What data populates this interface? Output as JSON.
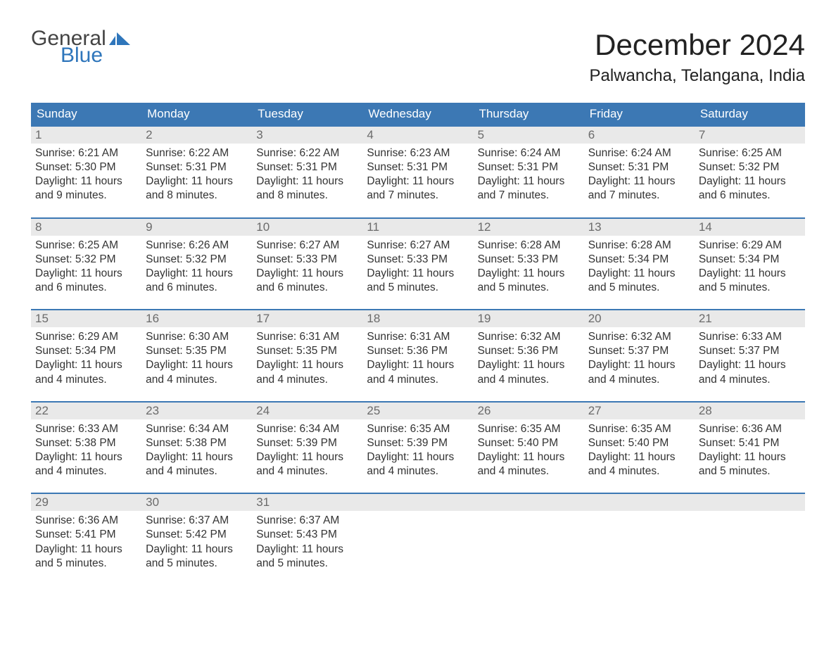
{
  "brand": {
    "line1": "General",
    "line2": "Blue",
    "general_color": "#444444",
    "blue_color": "#2f76bb",
    "icon_fill": "#2f76bb"
  },
  "title": "December 2024",
  "location": "Palwancha, Telangana, India",
  "header_bg": "#3c78b4",
  "header_fg": "#ffffff",
  "daynum_bg": "#e9e9e9",
  "daynum_fg": "#6b6b6b",
  "border_color": "#3c78b4",
  "weekdays": [
    "Sunday",
    "Monday",
    "Tuesday",
    "Wednesday",
    "Thursday",
    "Friday",
    "Saturday"
  ],
  "weeks": [
    [
      {
        "n": "1",
        "sr": "Sunrise: 6:21 AM",
        "ss": "Sunset: 5:30 PM",
        "d1": "Daylight: 11 hours",
        "d2": "and 9 minutes."
      },
      {
        "n": "2",
        "sr": "Sunrise: 6:22 AM",
        "ss": "Sunset: 5:31 PM",
        "d1": "Daylight: 11 hours",
        "d2": "and 8 minutes."
      },
      {
        "n": "3",
        "sr": "Sunrise: 6:22 AM",
        "ss": "Sunset: 5:31 PM",
        "d1": "Daylight: 11 hours",
        "d2": "and 8 minutes."
      },
      {
        "n": "4",
        "sr": "Sunrise: 6:23 AM",
        "ss": "Sunset: 5:31 PM",
        "d1": "Daylight: 11 hours",
        "d2": "and 7 minutes."
      },
      {
        "n": "5",
        "sr": "Sunrise: 6:24 AM",
        "ss": "Sunset: 5:31 PM",
        "d1": "Daylight: 11 hours",
        "d2": "and 7 minutes."
      },
      {
        "n": "6",
        "sr": "Sunrise: 6:24 AM",
        "ss": "Sunset: 5:31 PM",
        "d1": "Daylight: 11 hours",
        "d2": "and 7 minutes."
      },
      {
        "n": "7",
        "sr": "Sunrise: 6:25 AM",
        "ss": "Sunset: 5:32 PM",
        "d1": "Daylight: 11 hours",
        "d2": "and 6 minutes."
      }
    ],
    [
      {
        "n": "8",
        "sr": "Sunrise: 6:25 AM",
        "ss": "Sunset: 5:32 PM",
        "d1": "Daylight: 11 hours",
        "d2": "and 6 minutes."
      },
      {
        "n": "9",
        "sr": "Sunrise: 6:26 AM",
        "ss": "Sunset: 5:32 PM",
        "d1": "Daylight: 11 hours",
        "d2": "and 6 minutes."
      },
      {
        "n": "10",
        "sr": "Sunrise: 6:27 AM",
        "ss": "Sunset: 5:33 PM",
        "d1": "Daylight: 11 hours",
        "d2": "and 6 minutes."
      },
      {
        "n": "11",
        "sr": "Sunrise: 6:27 AM",
        "ss": "Sunset: 5:33 PM",
        "d1": "Daylight: 11 hours",
        "d2": "and 5 minutes."
      },
      {
        "n": "12",
        "sr": "Sunrise: 6:28 AM",
        "ss": "Sunset: 5:33 PM",
        "d1": "Daylight: 11 hours",
        "d2": "and 5 minutes."
      },
      {
        "n": "13",
        "sr": "Sunrise: 6:28 AM",
        "ss": "Sunset: 5:34 PM",
        "d1": "Daylight: 11 hours",
        "d2": "and 5 minutes."
      },
      {
        "n": "14",
        "sr": "Sunrise: 6:29 AM",
        "ss": "Sunset: 5:34 PM",
        "d1": "Daylight: 11 hours",
        "d2": "and 5 minutes."
      }
    ],
    [
      {
        "n": "15",
        "sr": "Sunrise: 6:29 AM",
        "ss": "Sunset: 5:34 PM",
        "d1": "Daylight: 11 hours",
        "d2": "and 4 minutes."
      },
      {
        "n": "16",
        "sr": "Sunrise: 6:30 AM",
        "ss": "Sunset: 5:35 PM",
        "d1": "Daylight: 11 hours",
        "d2": "and 4 minutes."
      },
      {
        "n": "17",
        "sr": "Sunrise: 6:31 AM",
        "ss": "Sunset: 5:35 PM",
        "d1": "Daylight: 11 hours",
        "d2": "and 4 minutes."
      },
      {
        "n": "18",
        "sr": "Sunrise: 6:31 AM",
        "ss": "Sunset: 5:36 PM",
        "d1": "Daylight: 11 hours",
        "d2": "and 4 minutes."
      },
      {
        "n": "19",
        "sr": "Sunrise: 6:32 AM",
        "ss": "Sunset: 5:36 PM",
        "d1": "Daylight: 11 hours",
        "d2": "and 4 minutes."
      },
      {
        "n": "20",
        "sr": "Sunrise: 6:32 AM",
        "ss": "Sunset: 5:37 PM",
        "d1": "Daylight: 11 hours",
        "d2": "and 4 minutes."
      },
      {
        "n": "21",
        "sr": "Sunrise: 6:33 AM",
        "ss": "Sunset: 5:37 PM",
        "d1": "Daylight: 11 hours",
        "d2": "and 4 minutes."
      }
    ],
    [
      {
        "n": "22",
        "sr": "Sunrise: 6:33 AM",
        "ss": "Sunset: 5:38 PM",
        "d1": "Daylight: 11 hours",
        "d2": "and 4 minutes."
      },
      {
        "n": "23",
        "sr": "Sunrise: 6:34 AM",
        "ss": "Sunset: 5:38 PM",
        "d1": "Daylight: 11 hours",
        "d2": "and 4 minutes."
      },
      {
        "n": "24",
        "sr": "Sunrise: 6:34 AM",
        "ss": "Sunset: 5:39 PM",
        "d1": "Daylight: 11 hours",
        "d2": "and 4 minutes."
      },
      {
        "n": "25",
        "sr": "Sunrise: 6:35 AM",
        "ss": "Sunset: 5:39 PM",
        "d1": "Daylight: 11 hours",
        "d2": "and 4 minutes."
      },
      {
        "n": "26",
        "sr": "Sunrise: 6:35 AM",
        "ss": "Sunset: 5:40 PM",
        "d1": "Daylight: 11 hours",
        "d2": "and 4 minutes."
      },
      {
        "n": "27",
        "sr": "Sunrise: 6:35 AM",
        "ss": "Sunset: 5:40 PM",
        "d1": "Daylight: 11 hours",
        "d2": "and 4 minutes."
      },
      {
        "n": "28",
        "sr": "Sunrise: 6:36 AM",
        "ss": "Sunset: 5:41 PM",
        "d1": "Daylight: 11 hours",
        "d2": "and 5 minutes."
      }
    ],
    [
      {
        "n": "29",
        "sr": "Sunrise: 6:36 AM",
        "ss": "Sunset: 5:41 PM",
        "d1": "Daylight: 11 hours",
        "d2": "and 5 minutes."
      },
      {
        "n": "30",
        "sr": "Sunrise: 6:37 AM",
        "ss": "Sunset: 5:42 PM",
        "d1": "Daylight: 11 hours",
        "d2": "and 5 minutes."
      },
      {
        "n": "31",
        "sr": "Sunrise: 6:37 AM",
        "ss": "Sunset: 5:43 PM",
        "d1": "Daylight: 11 hours",
        "d2": "and 5 minutes."
      },
      {
        "n": "",
        "sr": "",
        "ss": "",
        "d1": "",
        "d2": ""
      },
      {
        "n": "",
        "sr": "",
        "ss": "",
        "d1": "",
        "d2": ""
      },
      {
        "n": "",
        "sr": "",
        "ss": "",
        "d1": "",
        "d2": ""
      },
      {
        "n": "",
        "sr": "",
        "ss": "",
        "d1": "",
        "d2": ""
      }
    ]
  ]
}
